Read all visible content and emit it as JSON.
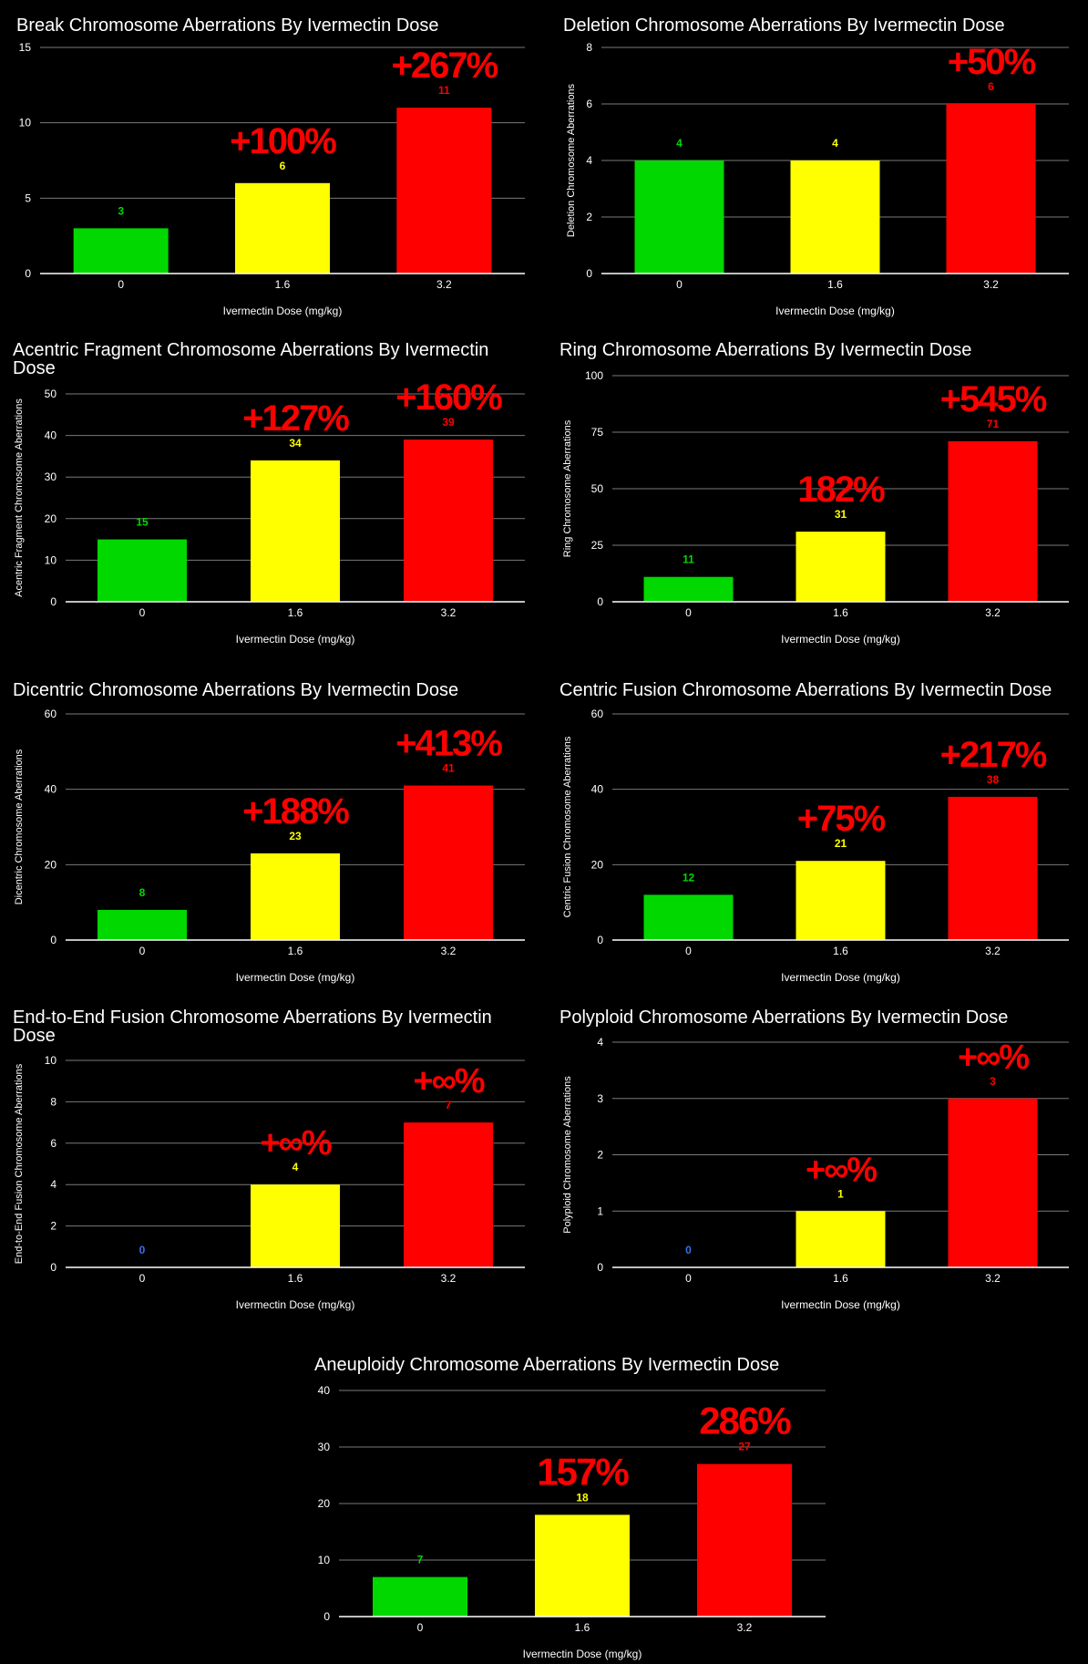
{
  "colors": {
    "background": "#000000",
    "gridline": "#7a7a7a",
    "axis": "#ffffff",
    "bar_0": "#00d800",
    "bar_1.6": "#ffff00",
    "bar_3.2": "#ff0000",
    "label_zero": "#3b6fe8",
    "annotation": "#ff0000"
  },
  "chart_data": [
    {
      "type": "bar",
      "title": "Break Chromosome Aberrations By Ivermectin Dose",
      "xlabel": "Ivermectin Dose (mg/kg)",
      "ylabel": "",
      "categories": [
        "0",
        "1.6",
        "3.2"
      ],
      "values": [
        3,
        6,
        11
      ],
      "ylim": [
        0,
        15
      ],
      "yticks": [
        0,
        5,
        10,
        15
      ],
      "grid": true,
      "annotations": [
        "",
        "+100%",
        "+267%"
      ]
    },
    {
      "type": "bar",
      "title": "Deletion Chromosome Aberrations By Ivermectin Dose",
      "xlabel": "Ivermectin Dose (mg/kg)",
      "ylabel": "Deletion Chromosome Aberrations",
      "categories": [
        "0",
        "1.6",
        "3.2"
      ],
      "values": [
        4,
        4,
        6
      ],
      "ylim": [
        0,
        8
      ],
      "yticks": [
        0,
        2,
        4,
        6,
        8
      ],
      "grid": true,
      "annotations": [
        "",
        "",
        "+50%"
      ]
    },
    {
      "type": "bar",
      "title": [
        "Acentric Fragment Chromosome Aberrations By Ivermectin",
        "Dose"
      ],
      "xlabel": "Ivermectin Dose (mg/kg)",
      "ylabel": "Acentric Fragment Chromosome Aberrations",
      "categories": [
        "0",
        "1.6",
        "3.2"
      ],
      "values": [
        15,
        34,
        39
      ],
      "ylim": [
        0,
        50
      ],
      "yticks": [
        0,
        10,
        20,
        30,
        40,
        50
      ],
      "grid": true,
      "annotations": [
        "",
        "+127%",
        "+160%"
      ]
    },
    {
      "type": "bar",
      "title": "Ring Chromosome Aberrations By Ivermectin Dose",
      "xlabel": "Ivermectin Dose (mg/kg)",
      "ylabel": "Ring Chromosome Aberrations",
      "categories": [
        "0",
        "1.6",
        "3.2"
      ],
      "values": [
        11,
        31,
        71
      ],
      "ylim": [
        0,
        100
      ],
      "yticks": [
        0,
        25,
        50,
        75,
        100
      ],
      "grid": true,
      "annotations": [
        "",
        "182%",
        "+545%"
      ]
    },
    {
      "type": "bar",
      "title": "Dicentric Chromosome Aberrations By Ivermectin Dose",
      "xlabel": "Ivermectin Dose (mg/kg)",
      "ylabel": "Dicentric Chromosome Aberrations",
      "categories": [
        "0",
        "1.6",
        "3.2"
      ],
      "values": [
        8,
        23,
        41
      ],
      "ylim": [
        0,
        60
      ],
      "yticks": [
        0,
        20,
        40,
        60
      ],
      "grid": true,
      "annotations": [
        "",
        "+188%",
        "+413%"
      ]
    },
    {
      "type": "bar",
      "title": "Centric Fusion Chromosome Aberrations By Ivermectin Dose",
      "xlabel": "Ivermectin Dose (mg/kg)",
      "ylabel": "Centric Fusion Chromosome Aberrations",
      "categories": [
        "0",
        "1.6",
        "3.2"
      ],
      "values": [
        12,
        21,
        38
      ],
      "ylim": [
        0,
        60
      ],
      "yticks": [
        0,
        20,
        40,
        60
      ],
      "grid": true,
      "annotations": [
        "",
        "+75%",
        "+217%"
      ]
    },
    {
      "type": "bar",
      "title": [
        "End-to-End Fusion Chromosome Aberrations By Ivermectin",
        "Dose"
      ],
      "xlabel": "Ivermectin Dose (mg/kg)",
      "ylabel": "End-to-End Fusion Chromosome Aberrations",
      "categories": [
        "0",
        "1.6",
        "3.2"
      ],
      "values": [
        0,
        4,
        7
      ],
      "ylim": [
        0,
        10
      ],
      "yticks": [
        0,
        2,
        4,
        6,
        8,
        10
      ],
      "grid": true,
      "annotations": [
        "",
        "+∞%",
        "+∞%"
      ]
    },
    {
      "type": "bar",
      "title": "Polyploid Chromosome Aberrations By Ivermectin Dose",
      "xlabel": "Ivermectin Dose (mg/kg)",
      "ylabel": "Polyploid Chromosome Aberrations",
      "categories": [
        "0",
        "1.6",
        "3.2"
      ],
      "values": [
        0,
        1,
        3
      ],
      "ylim": [
        0,
        4
      ],
      "yticks": [
        0,
        1,
        2,
        3,
        4
      ],
      "grid": true,
      "annotations": [
        "",
        "+∞%",
        "+∞%"
      ]
    },
    {
      "type": "bar",
      "title": "Aneuploidy Chromosome Aberrations By Ivermectin Dose",
      "xlabel": "Ivermectin Dose (mg/kg)",
      "ylabel": "",
      "categories": [
        "0",
        "1.6",
        "3.2"
      ],
      "values": [
        7,
        18,
        27
      ],
      "ylim": [
        0,
        40
      ],
      "yticks": [
        0,
        10,
        20,
        30,
        40
      ],
      "grid": true,
      "annotations": [
        "",
        "157%",
        "286%"
      ]
    }
  ]
}
